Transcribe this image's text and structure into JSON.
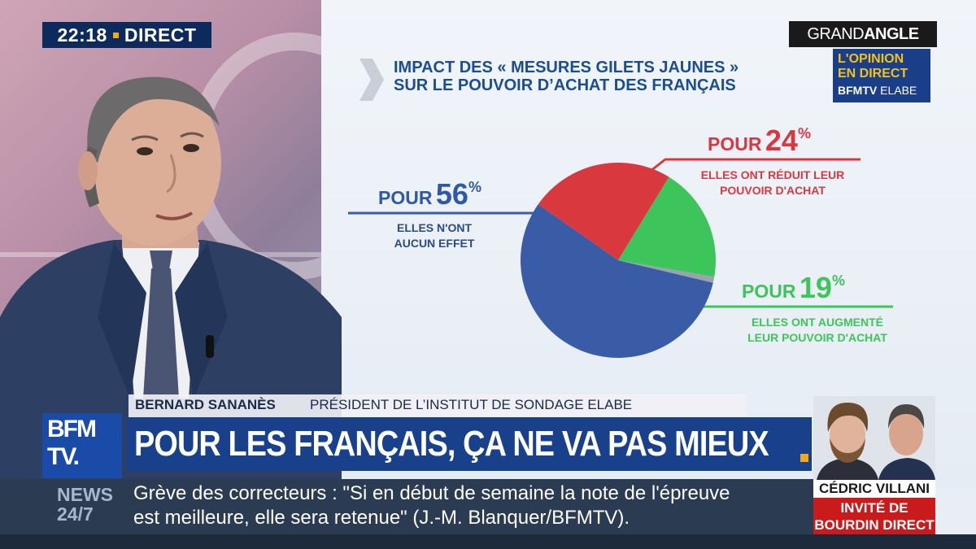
{
  "clock": {
    "time": "22:18",
    "status": "DIRECT"
  },
  "branding": {
    "grand_angle_1": "GRAND",
    "grand_angle_2": "ANGLE",
    "opinion_line1": "L'OPINION",
    "opinion_line2": "EN DIRECT",
    "opinion_line3a": "BFMTV",
    "opinion_line3b": "ELABE",
    "channel_logo_1": "BFM",
    "channel_logo_2": "TV."
  },
  "chart_data": {
    "type": "pie",
    "title_lines": [
      "IMPACT DES « MESURES GILETS JAUNES »",
      "SUR LE POUVOIR D’ACHAT DES FRANÇAIS"
    ],
    "slices": [
      {
        "prefix": "POUR",
        "value": 56,
        "unit": "%",
        "desc_lines": [
          "ELLES N'ONT",
          "AUCUN EFFET"
        ],
        "color": "#3a5ba6"
      },
      {
        "prefix": "POUR",
        "value": 24,
        "unit": "%",
        "desc_lines": [
          "ELLES ONT RÉDUIT LEUR",
          "POUVOIR D'ACHAT"
        ],
        "color": "#d9393e"
      },
      {
        "prefix": "POUR",
        "value": 19,
        "unit": "%",
        "desc_lines": [
          "ELLES ONT AUGMENTÉ",
          "LEUR POUVOIR D'ACHAT"
        ],
        "color": "#3dc45a"
      }
    ],
    "remainder_color": "#9aa3ad",
    "start_angle_deg": -55
  },
  "lower_third": {
    "speaker_name": "BERNARD SANANÈS",
    "speaker_title": "PRÉSIDENT DE L’INSTITUT DE SONDAGE ELABE",
    "headline": "POUR LES FRANÇAIS, ÇA NE VA PAS MIEUX"
  },
  "guest": {
    "name": "CÉDRIC VILLANI",
    "cta_line1": "INVITÉ DE",
    "cta_line2": "BOURDIN DIRECT"
  },
  "ticker": {
    "label_1": "NEWS",
    "label_2": "24/7",
    "line1": "Grève des correcteurs : \"Si en début de semaine la note de l'épreuve",
    "line2": "est meilleure, elle sera retenue\" (J.-M. Blanquer/BFMTV)."
  }
}
